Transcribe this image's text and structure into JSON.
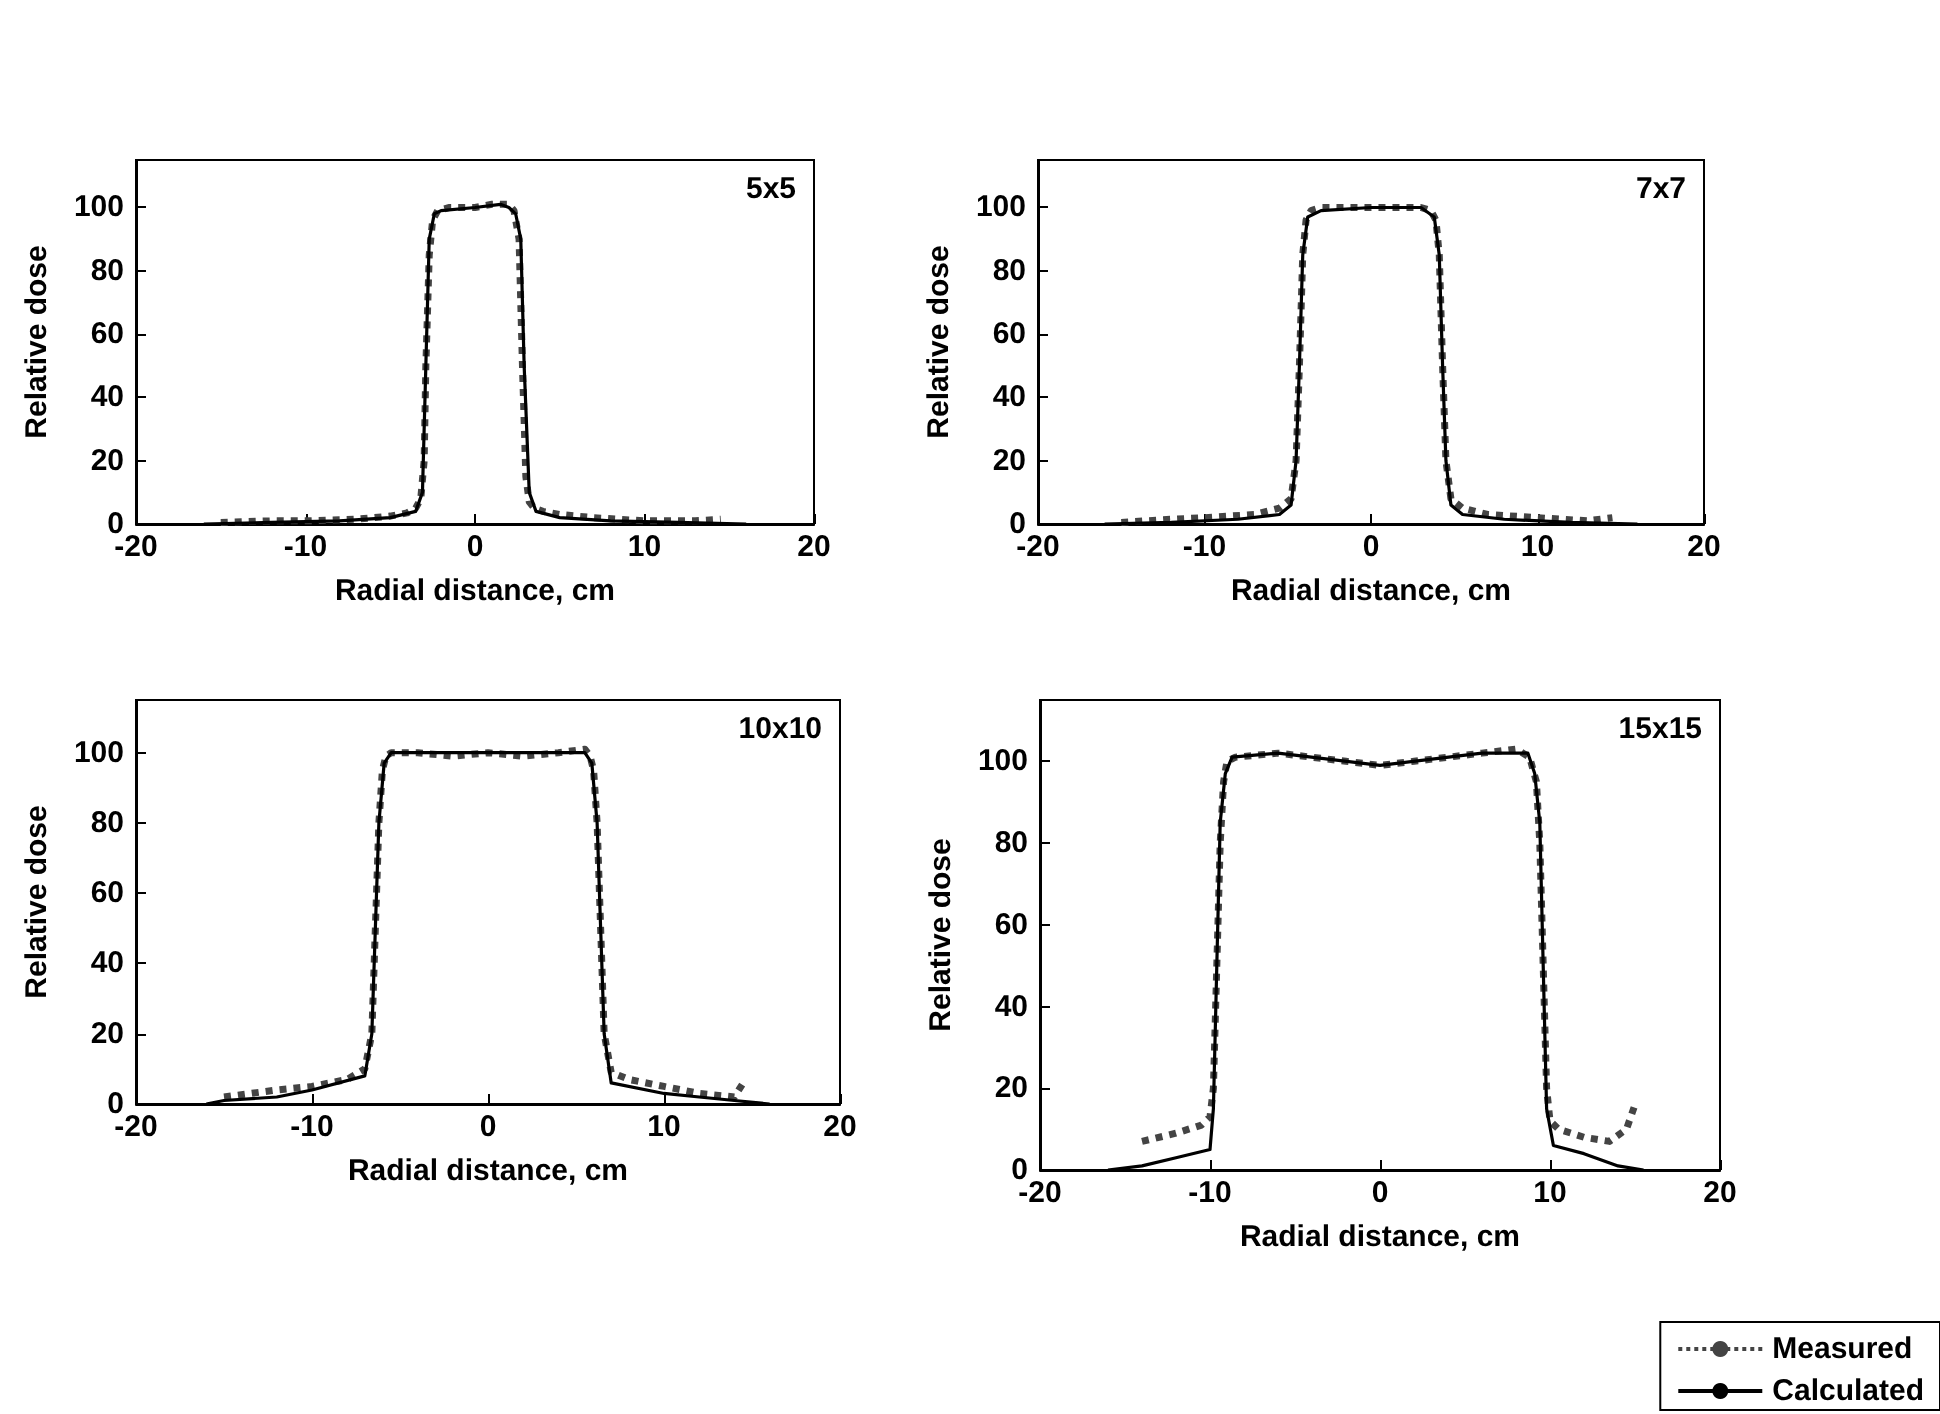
{
  "chart_data": [
    {
      "type": "line",
      "title": "5x5",
      "xlabel": "Radial distance, cm",
      "ylabel": "Relative dose",
      "xlim": [
        -20,
        20
      ],
      "xticks": [
        -20,
        -10,
        0,
        10,
        20
      ],
      "ylim": [
        0,
        115
      ],
      "yticks": [
        0,
        20,
        40,
        60,
        80,
        100
      ],
      "grid": false,
      "legend": false,
      "marker": "none",
      "series": [
        {
          "color": "#444444",
          "line_style": "dotted",
          "x": [
            -15,
            -12,
            -10,
            -7,
            -5,
            -4,
            -3.5,
            -3.2,
            -3,
            -2.9,
            -2.7,
            -2.5,
            -2.2,
            -1.5,
            0,
            1,
            2,
            2.3,
            2.6,
            2.8,
            3,
            3.2,
            3.5,
            4,
            5,
            7,
            10,
            13,
            14.5
          ],
          "values": [
            0.5,
            1,
            1,
            1.5,
            2.5,
            3.5,
            5,
            8,
            20,
            50,
            85,
            96,
            99,
            100,
            100,
            101,
            101,
            99,
            90,
            50,
            15,
            7,
            5,
            4,
            3,
            2,
            1,
            1,
            1.5
          ]
        },
        {
          "color": "#000000",
          "line_style": "solid",
          "x": [
            -16,
            -12,
            -8,
            -5,
            -3.5,
            -3.1,
            -2.9,
            -2.7,
            -2.4,
            -2,
            0,
            1.5,
            2,
            2.4,
            2.7,
            2.9,
            3.2,
            3.6,
            5,
            8,
            12,
            16
          ],
          "values": [
            0,
            0.5,
            1,
            2,
            4,
            10,
            50,
            90,
            98,
            99,
            100,
            101,
            100,
            98,
            90,
            50,
            10,
            4,
            2,
            1,
            0.5,
            0
          ]
        }
      ]
    },
    {
      "type": "line",
      "title": "7x7",
      "xlabel": "Radial distance, cm",
      "ylabel": "Relative dose",
      "xlim": [
        -20,
        20
      ],
      "xticks": [
        -20,
        -10,
        0,
        10,
        20
      ],
      "ylim": [
        0,
        115
      ],
      "yticks": [
        0,
        20,
        40,
        60,
        80,
        100
      ],
      "grid": false,
      "legend": false,
      "marker": "none",
      "series": [
        {
          "color": "#444444",
          "line_style": "dotted",
          "x": [
            -15,
            -12,
            -10,
            -7,
            -5.5,
            -4.8,
            -4.5,
            -4.3,
            -4.1,
            -3.9,
            -3.6,
            -3,
            -1,
            0,
            1,
            3,
            3.6,
            3.9,
            4.1,
            4.3,
            4.5,
            4.8,
            5.5,
            7,
            10,
            13,
            14.5
          ],
          "values": [
            0.5,
            1.5,
            2,
            3,
            5,
            8,
            20,
            50,
            85,
            96,
            99,
            100,
            100,
            100,
            100,
            100,
            99,
            96,
            85,
            50,
            20,
            8,
            5,
            3,
            2,
            1,
            2
          ]
        },
        {
          "color": "#000000",
          "line_style": "solid",
          "x": [
            -16,
            -12,
            -8,
            -5.5,
            -4.8,
            -4.5,
            -4.3,
            -4.1,
            -3.8,
            -3,
            0,
            3,
            3.8,
            4.1,
            4.3,
            4.5,
            4.8,
            5.5,
            8,
            12,
            16
          ],
          "values": [
            0,
            0.5,
            1.5,
            3,
            6,
            20,
            50,
            85,
            97,
            99,
            100,
            100,
            97,
            85,
            50,
            20,
            6,
            3,
            1.5,
            0.5,
            0
          ]
        }
      ]
    },
    {
      "type": "line",
      "title": "10x10",
      "xlabel": "Radial distance, cm",
      "ylabel": "Relative dose",
      "xlim": [
        -20,
        20
      ],
      "xticks": [
        -20,
        -10,
        0,
        10,
        20
      ],
      "ylim": [
        0,
        115
      ],
      "yticks": [
        0,
        20,
        40,
        60,
        80,
        100
      ],
      "grid": false,
      "legend": false,
      "marker": "none",
      "series": [
        {
          "color": "#444444",
          "line_style": "dotted",
          "x": [
            -15,
            -12,
            -10,
            -8,
            -7,
            -6.6,
            -6.4,
            -6.2,
            -6,
            -5.8,
            -5.5,
            -4,
            -2,
            0,
            2,
            4,
            5.5,
            5.8,
            6,
            6.2,
            6.4,
            6.6,
            7,
            8,
            10,
            12,
            14,
            14.5
          ],
          "values": [
            2,
            4,
            5,
            7,
            10,
            20,
            50,
            80,
            95,
            99,
            100,
            100,
            99,
            100,
            99,
            100,
            101,
            99,
            95,
            80,
            50,
            20,
            9,
            7,
            5,
            3,
            2,
            6
          ]
        },
        {
          "color": "#000000",
          "line_style": "solid",
          "x": [
            -16,
            -15,
            -12,
            -10,
            -7,
            -6.6,
            -6.4,
            -6.2,
            -5.9,
            -5.5,
            0,
            5.5,
            5.9,
            6.2,
            6.4,
            6.6,
            7,
            10,
            12,
            14,
            16
          ],
          "values": [
            0,
            1,
            2,
            4,
            8,
            20,
            50,
            80,
            97,
            100,
            100,
            100,
            97,
            80,
            50,
            20,
            6,
            3,
            2,
            1,
            0
          ]
        }
      ]
    },
    {
      "type": "line",
      "title": "15x15",
      "xlabel": "Radial distance, cm",
      "ylabel": "Relative dose",
      "xlim": [
        -20,
        20
      ],
      "xticks": [
        -20,
        -10,
        0,
        10,
        20
      ],
      "ylim": [
        0,
        115
      ],
      "yticks": [
        0,
        20,
        40,
        60,
        80,
        100
      ],
      "grid": false,
      "legend": "bottom right",
      "marker": "none",
      "series": [
        {
          "name": "Measured",
          "color": "#444444",
          "line_style": "dotted",
          "x": [
            -14,
            -12,
            -10.5,
            -10,
            -9.8,
            -9.6,
            -9.4,
            -9.2,
            -9,
            -8.5,
            -6,
            -4,
            -2,
            0,
            2,
            4,
            6,
            8,
            8.8,
            9.2,
            9.4,
            9.6,
            9.8,
            10,
            10.5,
            12,
            13.5,
            14.5,
            15
          ],
          "values": [
            7,
            9,
            11,
            13,
            20,
            50,
            80,
            95,
            100,
            101,
            102,
            101,
            100,
            99,
            100,
            101,
            102,
            103,
            101,
            95,
            80,
            50,
            20,
            12,
            10,
            8,
            7,
            10,
            16
          ]
        },
        {
          "name": "Calculated",
          "color": "#000000",
          "line_style": "solid",
          "x": [
            -16,
            -14,
            -12,
            -10,
            -9.8,
            -9.6,
            -9.4,
            -9.1,
            -8.7,
            -6,
            0,
            6,
            8.7,
            9.1,
            9.4,
            9.6,
            9.8,
            10.2,
            12,
            14,
            15.5
          ],
          "values": [
            0,
            1,
            3,
            5,
            15,
            50,
            85,
            97,
            101,
            102,
            99,
            102,
            102,
            97,
            85,
            50,
            15,
            6,
            4,
            1,
            0
          ]
        }
      ]
    }
  ]
}
